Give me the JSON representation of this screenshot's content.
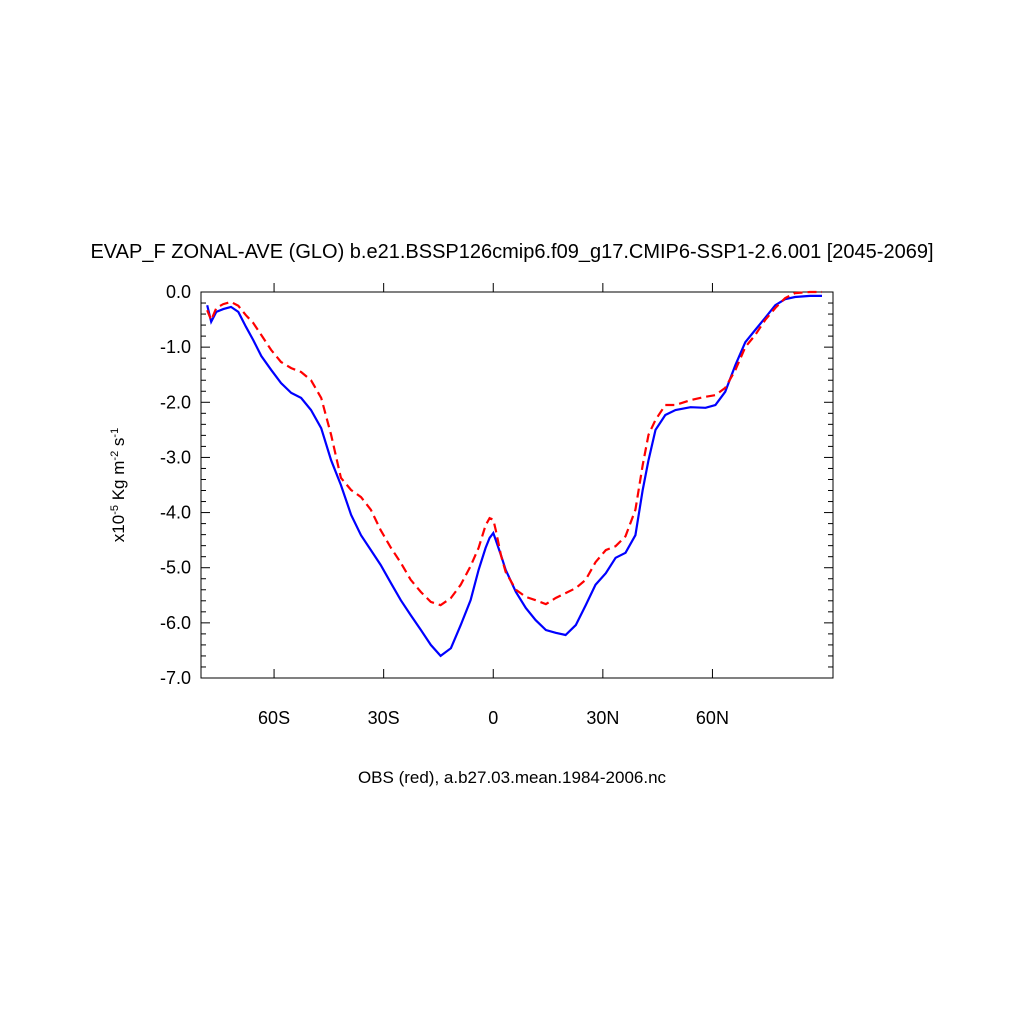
{
  "chart_data": {
    "type": "line",
    "title": "EVAP_F ZONAL-AVE (GLO) b.e21.BSSP126cmip6.f09_g17.CMIP6-SSP1-2.6.001 [2045-2069]",
    "xlabel": "OBS (red), a.b27.03.mean.1984-2006.nc",
    "ylabel_parts": [
      {
        "text": "x10",
        "sup": false
      },
      {
        "text": "-5",
        "sup": true
      },
      {
        "text": " Kg m",
        "sup": false
      },
      {
        "text": "-2",
        "sup": true
      },
      {
        "text": " s",
        "sup": false
      },
      {
        "text": "-1",
        "sup": true
      }
    ],
    "xlim": [
      -80,
      93
    ],
    "ylim": [
      -7,
      0
    ],
    "xticks": [
      {
        "value": -60,
        "label": "60S"
      },
      {
        "value": -30,
        "label": "30S"
      },
      0,
      {
        "value": 30,
        "label": "30N"
      },
      {
        "value": 60,
        "label": "60N"
      }
    ],
    "yticks": [
      {
        "value": 0,
        "label": "0.0"
      },
      {
        "value": -1,
        "label": "-1.0"
      },
      {
        "value": -2,
        "label": "-2.0"
      },
      {
        "value": -3,
        "label": "-3.0"
      },
      {
        "value": -4,
        "label": "-4.0"
      },
      {
        "value": -5,
        "label": "-5.0"
      },
      {
        "value": -6,
        "label": "-6.0"
      },
      {
        "value": -7,
        "label": "-7.0"
      }
    ],
    "x": [
      -78.3,
      -77.2,
      -75.8,
      -73.9,
      -71.8,
      -69.8,
      -67.7,
      -65.7,
      -63.5,
      -60.8,
      -58.1,
      -55.3,
      -52.6,
      -49.9,
      -47.1,
      -44.4,
      -41.7,
      -38.9,
      -36.2,
      -33.5,
      -30.8,
      -28.0,
      -25.3,
      -22.6,
      -19.8,
      -17.1,
      -14.4,
      -11.6,
      -8.9,
      -6.2,
      -4.0,
      -2.1,
      -1.0,
      0,
      0.7,
      2.1,
      3.4,
      6.2,
      8.9,
      11.6,
      14.4,
      17.1,
      19.8,
      22.6,
      25.3,
      28.0,
      30.8,
      33.5,
      36.2,
      38.9,
      40.9,
      42.5,
      44.4,
      47.1,
      49.9,
      54.0,
      58.1,
      60.8,
      63.5,
      66.3,
      69.0,
      71.7,
      74.4,
      77.2,
      79.9,
      82.6,
      86.7,
      90.0
    ],
    "series": [
      {
        "color": "#0000ff",
        "dash": false,
        "values": [
          -0.24,
          -0.54,
          -0.36,
          -0.31,
          -0.27,
          -0.36,
          -0.63,
          -0.87,
          -1.16,
          -1.41,
          -1.65,
          -1.83,
          -1.92,
          -2.14,
          -2.47,
          -3.05,
          -3.5,
          -4.04,
          -4.41,
          -4.68,
          -4.95,
          -5.28,
          -5.59,
          -5.86,
          -6.13,
          -6.4,
          -6.6,
          -6.46,
          -6.04,
          -5.59,
          -5.04,
          -4.64,
          -4.46,
          -4.37,
          -4.5,
          -4.77,
          -5.04,
          -5.44,
          -5.73,
          -5.95,
          -6.13,
          -6.18,
          -6.22,
          -6.04,
          -5.68,
          -5.31,
          -5.1,
          -4.82,
          -4.73,
          -4.41,
          -3.59,
          -3.05,
          -2.5,
          -2.23,
          -2.14,
          -2.09,
          -2.1,
          -2.05,
          -1.81,
          -1.32,
          -0.91,
          -0.69,
          -0.47,
          -0.24,
          -0.13,
          -0.09,
          -0.07,
          -0.07
        ]
      },
      {
        "color": "#ff0000",
        "dash": true,
        "values": [
          -0.33,
          -0.51,
          -0.29,
          -0.22,
          -0.18,
          -0.25,
          -0.42,
          -0.56,
          -0.78,
          -1.05,
          -1.27,
          -1.38,
          -1.45,
          -1.6,
          -1.92,
          -2.59,
          -3.37,
          -3.59,
          -3.72,
          -3.95,
          -4.32,
          -4.64,
          -4.91,
          -5.22,
          -5.44,
          -5.62,
          -5.68,
          -5.55,
          -5.31,
          -4.97,
          -4.64,
          -4.23,
          -4.1,
          -4.13,
          -4.32,
          -4.77,
          -5.08,
          -5.4,
          -5.53,
          -5.59,
          -5.66,
          -5.55,
          -5.46,
          -5.37,
          -5.22,
          -4.9,
          -4.68,
          -4.61,
          -4.43,
          -3.95,
          -3.14,
          -2.59,
          -2.32,
          -2.05,
          -2.05,
          -1.96,
          -1.9,
          -1.87,
          -1.74,
          -1.41,
          -1.0,
          -0.78,
          -0.51,
          -0.29,
          -0.11,
          -0.02,
          0.0,
          0.0
        ]
      }
    ]
  }
}
